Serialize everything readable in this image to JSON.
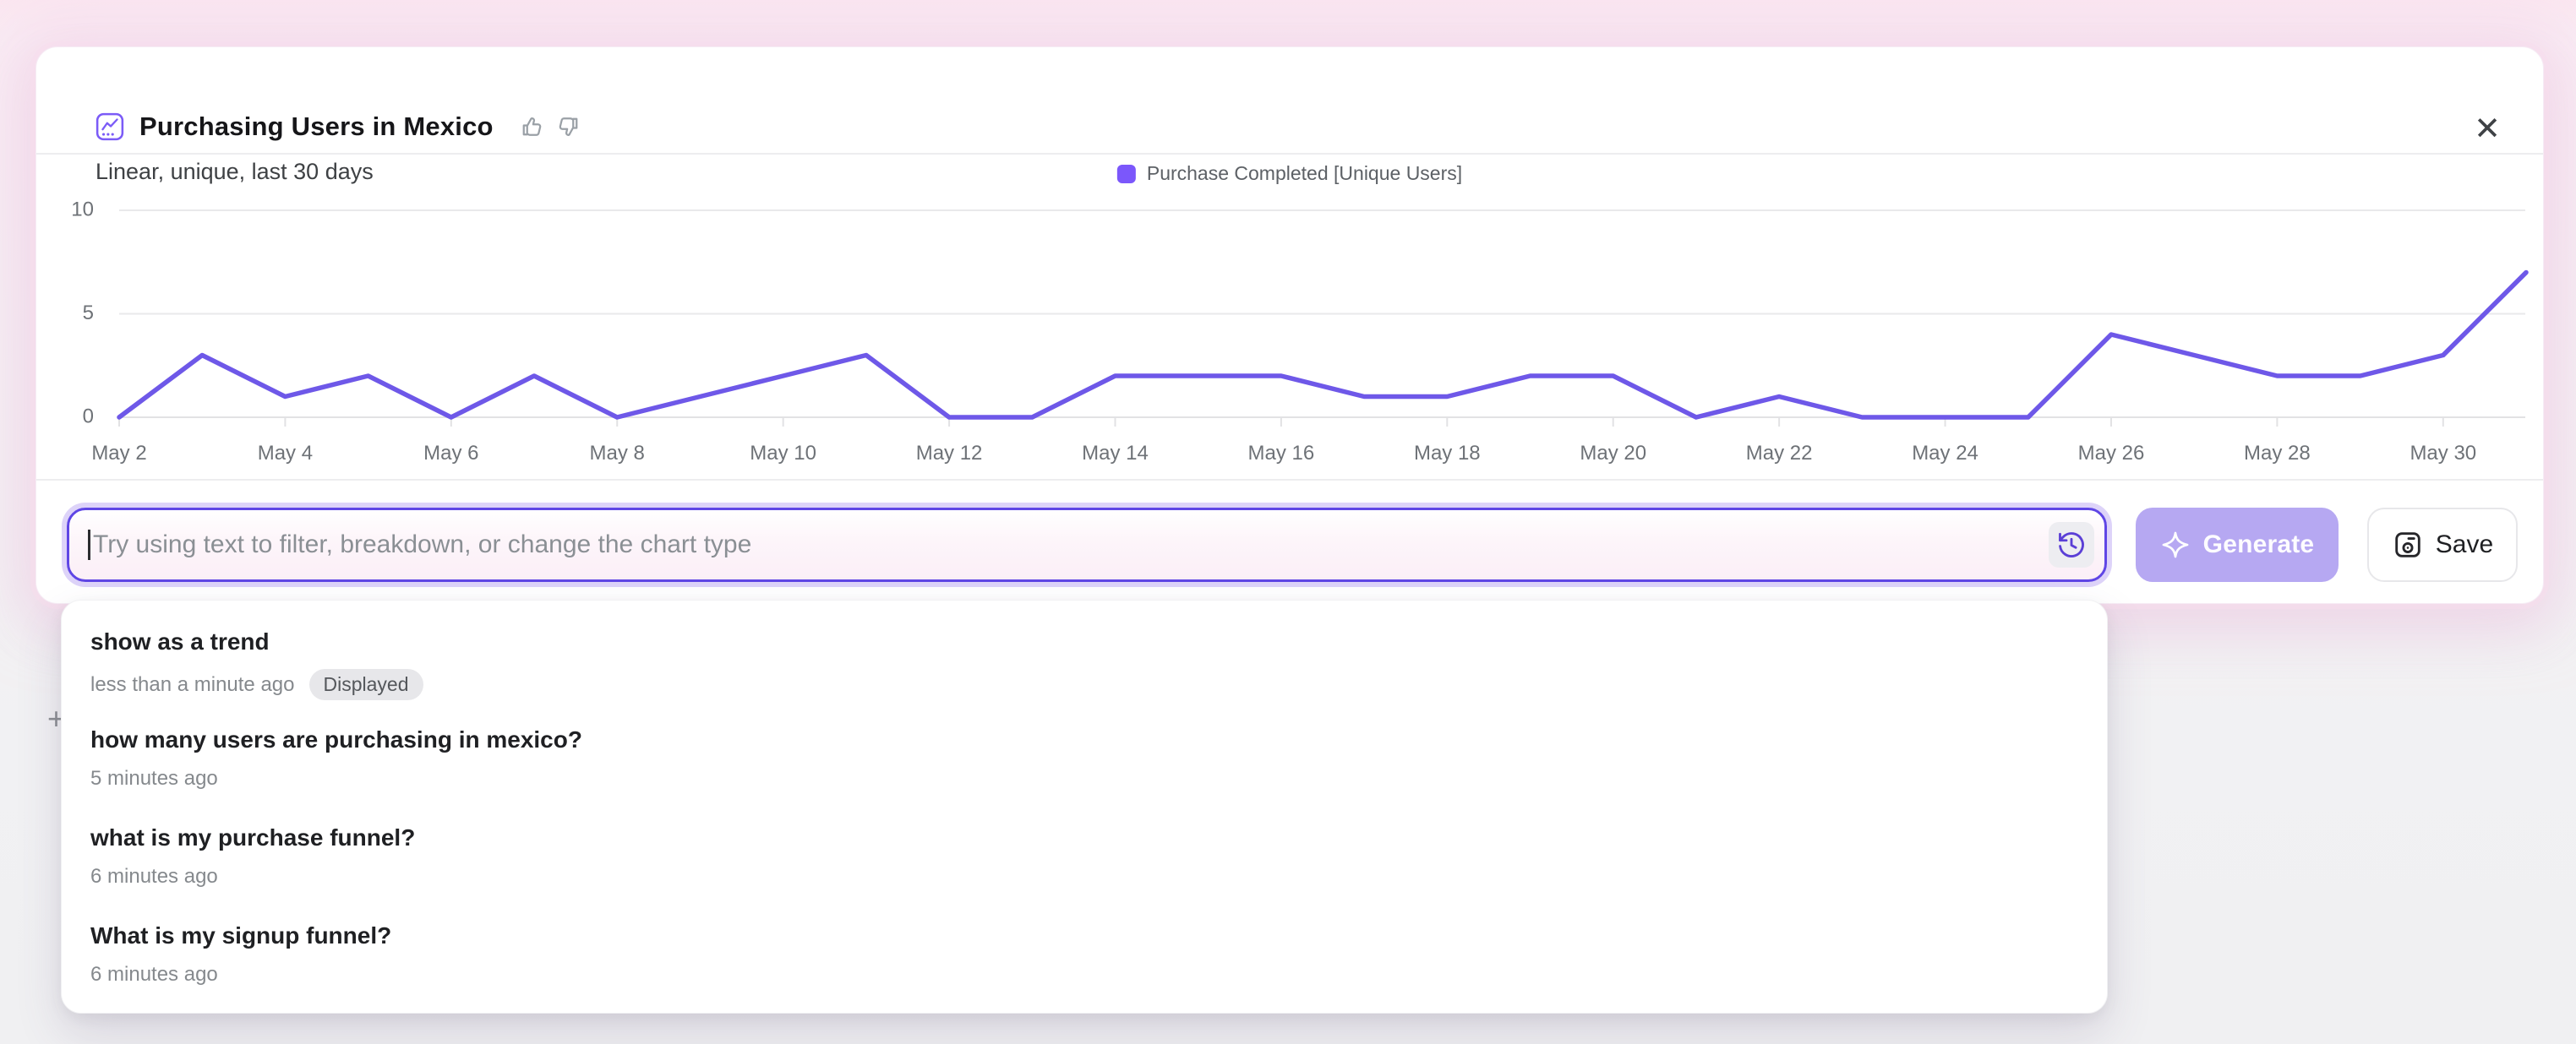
{
  "header": {
    "title": "Purchasing Users in Mexico",
    "subtitle": "Linear, unique, last 30 days",
    "close_glyph": "✕"
  },
  "chart_data": {
    "type": "line",
    "title": "Purchasing Users in Mexico",
    "x": [
      "May 2",
      "May 3",
      "May 4",
      "May 5",
      "May 6",
      "May 7",
      "May 8",
      "May 9",
      "May 10",
      "May 11",
      "May 12",
      "May 13",
      "May 14",
      "May 15",
      "May 16",
      "May 17",
      "May 18",
      "May 19",
      "May 20",
      "May 21",
      "May 22",
      "May 23",
      "May 24",
      "May 25",
      "May 26",
      "May 27",
      "May 28",
      "May 29",
      "May 30",
      "May 31"
    ],
    "series": [
      {
        "name": "Purchase Completed [Unique Users]",
        "color": "#6e58e8",
        "values": [
          0,
          3,
          1,
          2,
          0,
          2,
          0,
          1,
          2,
          3,
          0,
          0,
          2,
          2,
          2,
          1,
          1,
          2,
          2,
          0,
          1,
          0,
          0,
          0,
          4,
          3,
          2,
          2,
          3,
          7
        ]
      }
    ],
    "x_tick_step": 2,
    "y_ticks": [
      0,
      5,
      10
    ],
    "ylim": [
      0,
      10
    ],
    "grid": "horizontal",
    "legend_position": "top-center",
    "legend_swatch_color": "#7b57fb",
    "grid_color": "#e9e9eb",
    "axis_color": "#e2e2e4"
  },
  "controls": {
    "input_placeholder": "Try using text to filter, breakdown, or change the chart type",
    "input_value": "",
    "generate_label": "Generate",
    "save_label": "Save"
  },
  "history_dropdown": {
    "items": [
      {
        "query": "show as a trend",
        "time": "less than a minute ago",
        "badge": "Displayed"
      },
      {
        "query": "how many users are purchasing in mexico?",
        "time": "5 minutes ago",
        "badge": ""
      },
      {
        "query": "what is my purchase funnel?",
        "time": "6 minutes ago",
        "badge": ""
      },
      {
        "query": "What is my signup funnel?",
        "time": "6 minutes ago",
        "badge": ""
      }
    ]
  },
  "page": {
    "plus_glyph": "+"
  }
}
